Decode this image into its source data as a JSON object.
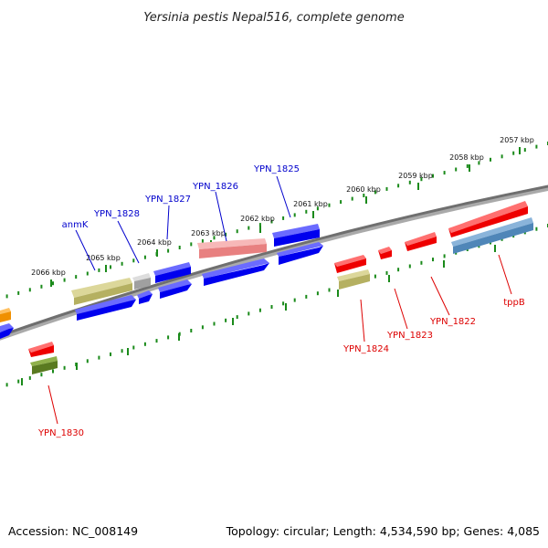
{
  "title": "Yersinia pestis Nepal516, complete genome",
  "footer": {
    "accession": "Accession: NC_008149",
    "summary": "Topology: circular; Length: 4,534,590 bp; Genes: 4,085"
  },
  "scale_labels": [
    "2066 kbp",
    "2065 kbp",
    "2064 kbp",
    "2063 kbp",
    "2062 kbp",
    "2061 kbp",
    "2060 kbp",
    "2059 kbp",
    "2058 kbp",
    "2057 kbp"
  ],
  "colors": {
    "blue": "#0000ee",
    "red": "#ee0000",
    "pink": "#e88080",
    "khaki": "#b5b061",
    "gray": "#a0a0a0",
    "steel": "#4f86b8",
    "olive": "#5a7a20",
    "orange": "#f09000",
    "backbone": "#777777",
    "tick": "#1a8a1a",
    "label_blue": "#0000cc",
    "label_red": "#dd0000"
  },
  "genes": [
    {
      "name": "anmK",
      "strand": "forward",
      "label_color": "blue"
    },
    {
      "name": "YPN_1828",
      "strand": "forward",
      "label_color": "blue"
    },
    {
      "name": "YPN_1827",
      "strand": "forward",
      "label_color": "blue"
    },
    {
      "name": "YPN_1826",
      "strand": "forward",
      "label_color": "blue"
    },
    {
      "name": "YPN_1825",
      "strand": "forward",
      "label_color": "blue"
    },
    {
      "name": "YPN_1824",
      "strand": "reverse",
      "label_color": "red"
    },
    {
      "name": "YPN_1823",
      "strand": "reverse",
      "label_color": "red"
    },
    {
      "name": "YPN_1822",
      "strand": "reverse",
      "label_color": "red"
    },
    {
      "name": "tppB",
      "strand": "reverse",
      "label_color": "red"
    },
    {
      "name": "YPN_1830",
      "strand": "reverse",
      "label_color": "red"
    }
  ]
}
